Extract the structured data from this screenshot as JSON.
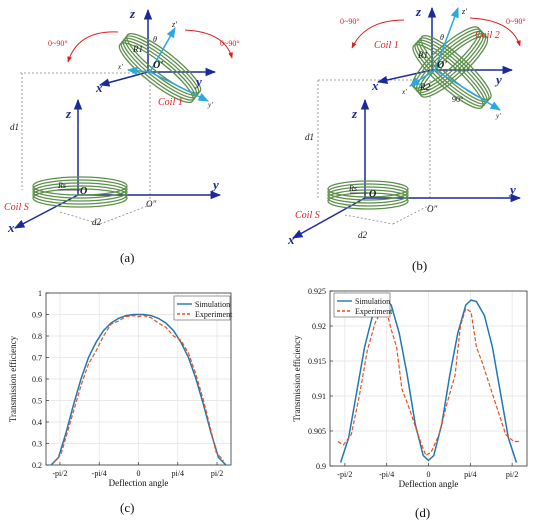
{
  "panels": {
    "a": {
      "caption": "(a)",
      "rot_left": "0~90°",
      "rot_right": "0~90°",
      "coil1": "Coil 1",
      "coils": "Coil S",
      "axis_z_top": "z",
      "axis_zp": "z'",
      "axis_y_top": "y",
      "axis_yp": "y'",
      "axis_x_top": "x",
      "axis_xp": "x'",
      "theta": "θ",
      "r1": "R1",
      "oprime": "O'",
      "axis_z": "z",
      "axis_y": "y",
      "axis_x": "x",
      "origin": "O",
      "odd": "O\"",
      "rs": "Rs",
      "d1": "d1",
      "d2": "d2"
    },
    "b": {
      "caption": "(b)",
      "rot_left": "0~90°",
      "rot_right": "0~90°",
      "coil1": "Coil 1",
      "coil2": "Coil 2",
      "coils": "Coil S",
      "axis_z_top": "z",
      "axis_zp": "z'",
      "axis_y_top": "y",
      "axis_yp": "y'",
      "axis_x_top": "x",
      "axis_xp": "x'",
      "theta": "θ",
      "r1": "R1",
      "r2": "R2",
      "oprime": "O'",
      "angle90": "90°",
      "axis_z": "z",
      "axis_y": "y",
      "axis_x": "x",
      "origin": "O",
      "odd": "O\"",
      "rs": "Rs",
      "d1": "d1",
      "d2": "d2"
    },
    "c": {
      "caption": "(c)"
    },
    "d": {
      "caption": "(d)"
    }
  },
  "chart_data": [
    {
      "type": "line",
      "xlabel": "Deflection angle",
      "ylabel": "Transmission efficiency",
      "xticks": [
        "-pi/2",
        "-pi/4",
        "0",
        "pi/4",
        "pi/2"
      ],
      "xtick_values": [
        -1.5708,
        -0.7854,
        0,
        0.7854,
        1.5708
      ],
      "xlim": [
        -1.85,
        1.85
      ],
      "ylim": [
        0.2,
        1.0
      ],
      "yticks": [
        "0.2",
        "0.3",
        "0.4",
        "0.5",
        "0.6",
        "0.7",
        "0.8",
        "0.9",
        "1"
      ],
      "ytick_values": [
        0.2,
        0.3,
        0.4,
        0.5,
        0.6,
        0.7,
        0.8,
        0.9,
        1.0
      ],
      "grid": true,
      "legend_position": "top-right",
      "series": [
        {
          "name": "Simulation",
          "color": "#1f77b4",
          "dash": "solid",
          "x": [
            -1.75,
            -1.6,
            -1.45,
            -1.3,
            -1.15,
            -1.0,
            -0.85,
            -0.7,
            -0.55,
            -0.4,
            -0.25,
            -0.1,
            0,
            0.1,
            0.25,
            0.4,
            0.55,
            0.7,
            0.85,
            1.0,
            1.15,
            1.3,
            1.45,
            1.6,
            1.75
          ],
          "y": [
            0.2,
            0.235,
            0.35,
            0.48,
            0.6,
            0.7,
            0.77,
            0.825,
            0.86,
            0.882,
            0.895,
            0.9,
            0.9,
            0.9,
            0.895,
            0.882,
            0.86,
            0.825,
            0.77,
            0.7,
            0.6,
            0.48,
            0.35,
            0.235,
            0.2
          ]
        },
        {
          "name": "Experiment",
          "color": "#e8501e",
          "dash": "dashed",
          "x": [
            -1.7,
            -1.55,
            -1.45,
            -1.3,
            -1.15,
            -1.0,
            -0.85,
            -0.7,
            -0.55,
            -0.4,
            -0.25,
            -0.1,
            0,
            0.1,
            0.25,
            0.4,
            0.55,
            0.7,
            0.85,
            1.0,
            1.15,
            1.3,
            1.45,
            1.55,
            1.7
          ],
          "y": [
            0.21,
            0.25,
            0.33,
            0.45,
            0.57,
            0.67,
            0.73,
            0.8,
            0.855,
            0.87,
            0.89,
            0.895,
            0.89,
            0.895,
            0.885,
            0.86,
            0.84,
            0.8,
            0.78,
            0.72,
            0.62,
            0.5,
            0.36,
            0.26,
            0.22
          ]
        }
      ]
    },
    {
      "type": "line",
      "xlabel": "Deflection angle",
      "ylabel": "Transmission efficiency",
      "xticks": [
        "-pi/2",
        "-pi/4",
        "0",
        "pi/4",
        "pi/2"
      ],
      "xtick_values": [
        -1.5708,
        -0.7854,
        0,
        0.7854,
        1.5708
      ],
      "xlim": [
        -1.85,
        1.85
      ],
      "ylim": [
        0.9,
        0.925
      ],
      "yticks": [
        "0.9",
        "0.905",
        "0.91",
        "0.915",
        "0.92",
        "0.925"
      ],
      "ytick_values": [
        0.9,
        0.905,
        0.91,
        0.915,
        0.92,
        0.925
      ],
      "grid": true,
      "legend_position": "top-left",
      "series": [
        {
          "name": "Simulation",
          "color": "#1f77b4",
          "dash": "solid",
          "x": [
            -1.65,
            -1.5,
            -1.35,
            -1.2,
            -1.05,
            -0.9,
            -0.8,
            -0.7,
            -0.55,
            -0.4,
            -0.25,
            -0.1,
            0,
            0.1,
            0.25,
            0.4,
            0.55,
            0.7,
            0.8,
            0.9,
            1.05,
            1.2,
            1.35,
            1.5,
            1.65
          ],
          "y": [
            0.9005,
            0.904,
            0.9105,
            0.917,
            0.9215,
            0.9235,
            0.9237,
            0.923,
            0.919,
            0.913,
            0.906,
            0.9015,
            0.9008,
            0.9015,
            0.906,
            0.913,
            0.919,
            0.923,
            0.9237,
            0.9235,
            0.9215,
            0.917,
            0.9105,
            0.904,
            0.9005
          ]
        },
        {
          "name": "Experiment",
          "color": "#e8501e",
          "dash": "dashed",
          "x": [
            -1.7,
            -1.6,
            -1.45,
            -1.3,
            -1.15,
            -1.0,
            -0.9,
            -0.8,
            -0.7,
            -0.6,
            -0.5,
            -0.35,
            -0.2,
            -0.05,
            0.05,
            0.2,
            0.35,
            0.5,
            0.6,
            0.7,
            0.8,
            0.9,
            1.0,
            1.15,
            1.3,
            1.45,
            1.6,
            1.7
          ],
          "y": [
            0.9035,
            0.903,
            0.9045,
            0.91,
            0.9165,
            0.9205,
            0.922,
            0.9225,
            0.9195,
            0.917,
            0.911,
            0.908,
            0.9045,
            0.9015,
            0.902,
            0.9045,
            0.909,
            0.913,
            0.92,
            0.9225,
            0.922,
            0.917,
            0.915,
            0.9115,
            0.908,
            0.9045,
            0.9035,
            0.9035
          ]
        }
      ]
    }
  ]
}
